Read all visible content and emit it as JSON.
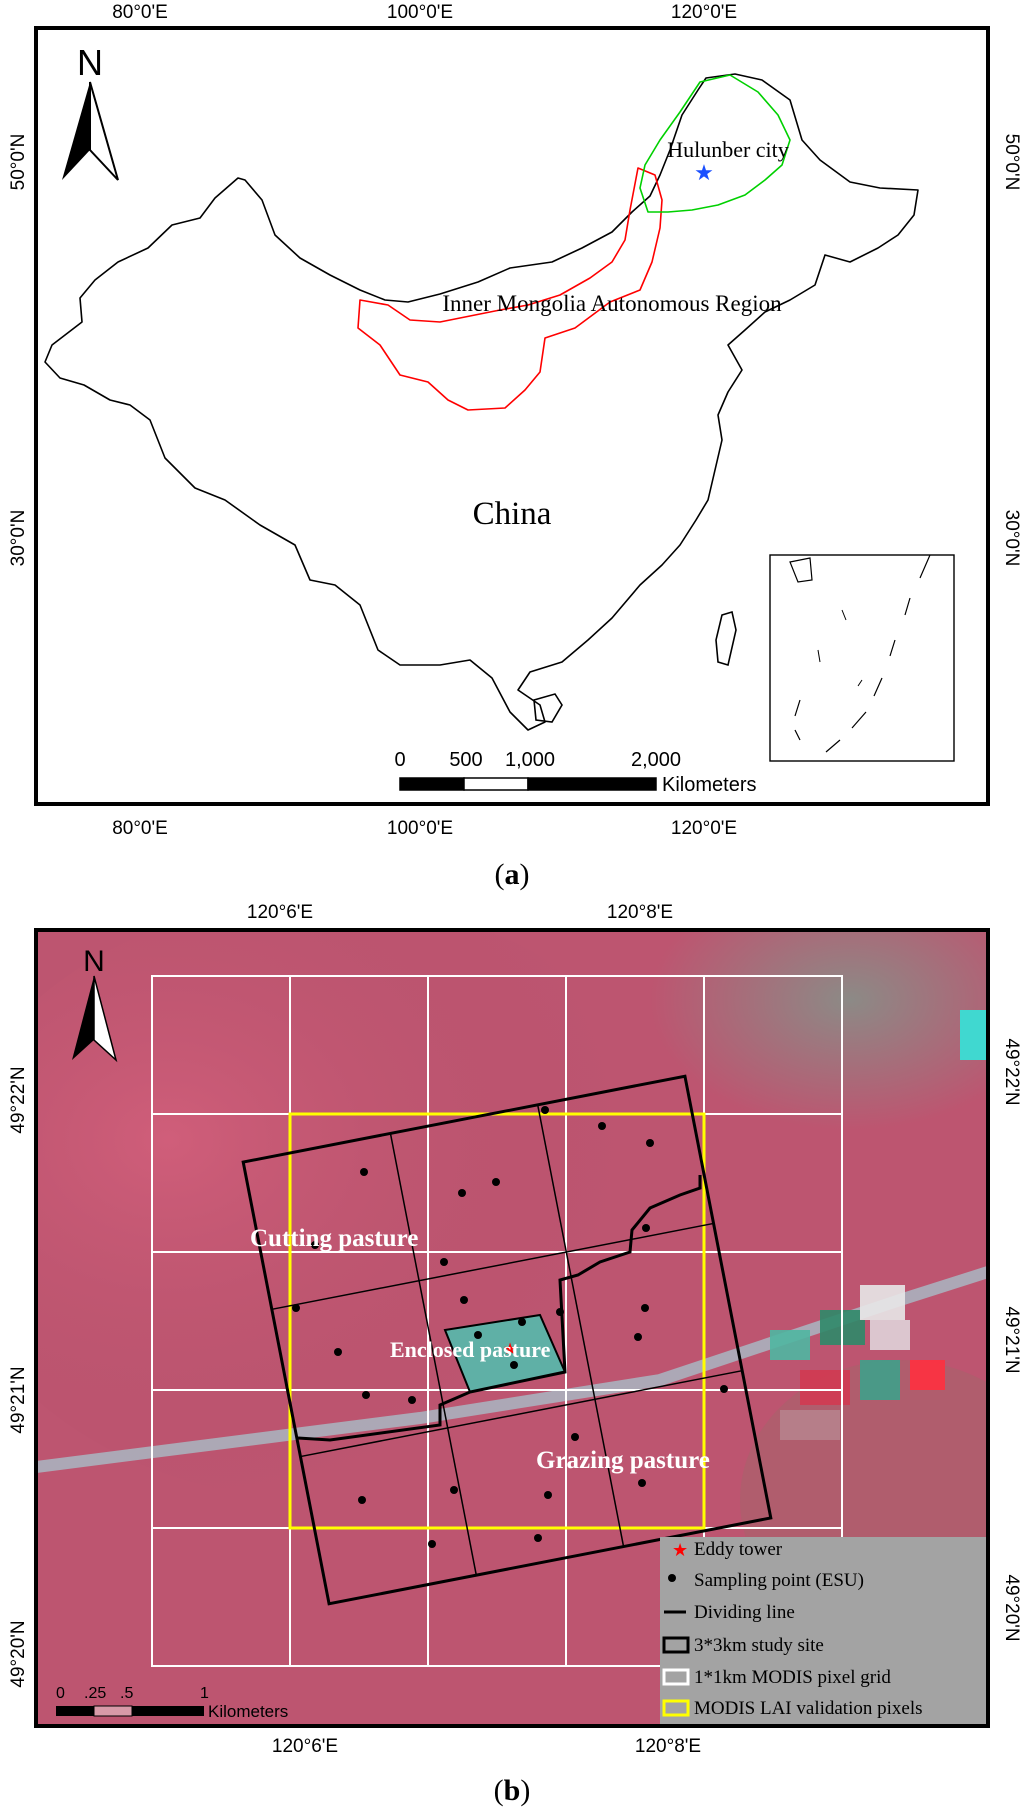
{
  "panel_a": {
    "caption": "(a)",
    "caption_letter": "a",
    "north_label": "N",
    "lon_labels": [
      "80°0'E",
      "100°0'E",
      "120°0'E"
    ],
    "lat_labels": [
      "50°0'N",
      "30°0'N"
    ],
    "labels": {
      "city": "Hulunber city",
      "region": "Inner Mongolia Autonomous Region",
      "country": "China"
    },
    "scale_ticks": [
      "0",
      "500",
      "1,000",
      "2,000"
    ],
    "scale_unit": "Kilometers",
    "colors": {
      "region_outline": "#ff0000",
      "city_outline": "#00d000",
      "city_marker": "#1a4fff"
    }
  },
  "panel_b": {
    "caption": "(b)",
    "caption_letter": "b",
    "north_label": "N",
    "lon_labels": [
      "120°6'E",
      "120°8'E"
    ],
    "lat_labels": [
      "49°22'N",
      "49°21'N",
      "49°20'N"
    ],
    "labels": {
      "cutting": "Cutting pasture",
      "enclosed": "Enclosed pasture",
      "grazing": "Grazing pasture"
    },
    "scale_ticks": [
      "0",
      ".25",
      ".5",
      "1"
    ],
    "scale_unit": "Kilometers",
    "legend": [
      {
        "label": "Eddy tower",
        "icon": "red-star"
      },
      {
        "label": "Sampling point (ESU)",
        "icon": "black-dot"
      },
      {
        "label": "Dividing line",
        "icon": "black-line"
      },
      {
        "label": "3*3km study site",
        "icon": "black-box"
      },
      {
        "label": "1*1km MODIS pixel grid",
        "icon": "white-box"
      },
      {
        "label": "MODIS LAI validation pixels",
        "icon": "yellow-box"
      }
    ],
    "colors": {
      "background": "#c0556e",
      "grid": "#ffffff",
      "validation": "#ffff00",
      "tower": "#ff0000",
      "legend_bg": "#a3a3a3"
    }
  }
}
